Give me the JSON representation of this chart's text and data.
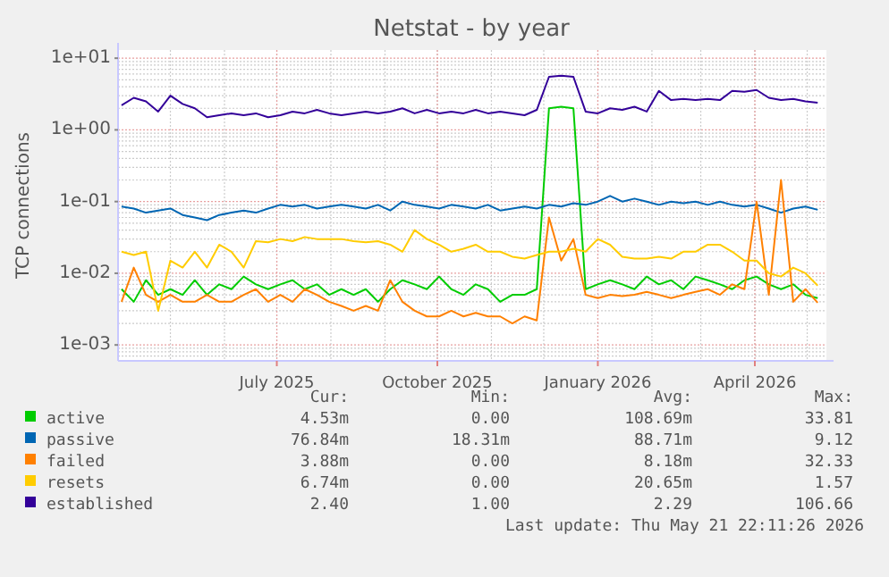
{
  "chart_data": {
    "type": "line",
    "title": "Netstat - by year",
    "ylabel": "TCP connections",
    "log": true,
    "grid": true,
    "legend": "bottom",
    "line_style": "solid",
    "marker": "none",
    "xlim": [
      "2025-04-01",
      "2026-05-12"
    ],
    "xticks": [
      {
        "value": "2025-07-01",
        "label": "July 2025"
      },
      {
        "value": "2025-10-01",
        "label": "October 2025"
      },
      {
        "value": "2026-01-01",
        "label": "January 2026"
      },
      {
        "value": "2026-04-01",
        "label": "April 2026"
      }
    ],
    "ylim": [
      0.0006,
      13
    ],
    "yticks": [
      {
        "value": 0.001,
        "label": "1e-03"
      },
      {
        "value": 0.01,
        "label": "1e-02"
      },
      {
        "value": 0.1,
        "label": "1e-01"
      },
      {
        "value": 1,
        "label": "1e+00"
      },
      {
        "value": 10,
        "label": "1e+01"
      }
    ],
    "x": [
      "2025-04-03",
      "2025-04-10",
      "2025-04-17",
      "2025-04-24",
      "2025-05-01",
      "2025-05-08",
      "2025-05-15",
      "2025-05-22",
      "2025-05-29",
      "2025-06-05",
      "2025-06-12",
      "2025-06-19",
      "2025-06-26",
      "2025-07-03",
      "2025-07-10",
      "2025-07-17",
      "2025-07-24",
      "2025-07-31",
      "2025-08-07",
      "2025-08-14",
      "2025-08-21",
      "2025-08-28",
      "2025-09-04",
      "2025-09-11",
      "2025-09-18",
      "2025-09-25",
      "2025-10-02",
      "2025-10-09",
      "2025-10-16",
      "2025-10-23",
      "2025-10-30",
      "2025-11-06",
      "2025-11-13",
      "2025-11-20",
      "2025-11-27",
      "2025-12-04",
      "2025-12-11",
      "2025-12-18",
      "2025-12-25",
      "2026-01-01",
      "2026-01-08",
      "2026-01-15",
      "2026-01-22",
      "2026-01-29",
      "2026-02-05",
      "2026-02-12",
      "2026-02-19",
      "2026-02-26",
      "2026-03-05",
      "2026-03-12",
      "2026-03-19",
      "2026-03-26",
      "2026-04-02",
      "2026-04-09",
      "2026-04-16",
      "2026-04-23",
      "2026-04-30",
      "2026-05-07"
    ],
    "series": [
      {
        "name": "active",
        "color": "#00cc00",
        "values": [
          0.006,
          0.004,
          0.008,
          0.005,
          0.006,
          0.005,
          0.008,
          0.005,
          0.007,
          0.006,
          0.009,
          0.007,
          0.006,
          0.007,
          0.008,
          0.006,
          0.007,
          0.005,
          0.006,
          0.005,
          0.006,
          0.004,
          0.006,
          0.008,
          0.007,
          0.006,
          0.009,
          0.006,
          0.005,
          0.007,
          0.006,
          0.004,
          0.005,
          0.005,
          0.006,
          2.0,
          2.1,
          2.0,
          0.006,
          0.007,
          0.008,
          0.007,
          0.006,
          0.009,
          0.007,
          0.008,
          0.006,
          0.009,
          0.008,
          0.007,
          0.006,
          0.008,
          0.009,
          0.007,
          0.006,
          0.007,
          0.005,
          0.0045
        ]
      },
      {
        "name": "passive",
        "color": "#0066b3",
        "values": [
          0.085,
          0.08,
          0.07,
          0.075,
          0.08,
          0.065,
          0.06,
          0.055,
          0.065,
          0.07,
          0.075,
          0.07,
          0.08,
          0.09,
          0.085,
          0.09,
          0.08,
          0.085,
          0.09,
          0.085,
          0.08,
          0.09,
          0.075,
          0.1,
          0.09,
          0.085,
          0.08,
          0.09,
          0.085,
          0.08,
          0.09,
          0.075,
          0.08,
          0.085,
          0.08,
          0.09,
          0.085,
          0.095,
          0.09,
          0.1,
          0.12,
          0.1,
          0.11,
          0.1,
          0.09,
          0.1,
          0.095,
          0.1,
          0.09,
          0.1,
          0.09,
          0.085,
          0.09,
          0.08,
          0.07,
          0.08,
          0.085,
          0.0768
        ]
      },
      {
        "name": "failed",
        "color": "#ff8000",
        "values": [
          0.004,
          0.012,
          0.005,
          0.004,
          0.005,
          0.004,
          0.004,
          0.005,
          0.004,
          0.004,
          0.005,
          0.006,
          0.004,
          0.005,
          0.004,
          0.006,
          0.005,
          0.004,
          0.0035,
          0.003,
          0.0035,
          0.003,
          0.008,
          0.004,
          0.003,
          0.0025,
          0.0025,
          0.003,
          0.0025,
          0.0028,
          0.0025,
          0.0025,
          0.002,
          0.0025,
          0.0022,
          0.06,
          0.015,
          0.03,
          0.005,
          0.0045,
          0.005,
          0.0048,
          0.005,
          0.0055,
          0.005,
          0.0045,
          0.005,
          0.0055,
          0.006,
          0.005,
          0.007,
          0.006,
          0.1,
          0.005,
          0.2,
          0.004,
          0.006,
          0.00388
        ]
      },
      {
        "name": "resets",
        "color": "#ffcc00",
        "values": [
          0.02,
          0.018,
          0.02,
          0.003,
          0.015,
          0.012,
          0.02,
          0.012,
          0.025,
          0.02,
          0.012,
          0.028,
          0.027,
          0.03,
          0.028,
          0.032,
          0.03,
          0.03,
          0.03,
          0.028,
          0.027,
          0.028,
          0.025,
          0.02,
          0.04,
          0.03,
          0.025,
          0.02,
          0.022,
          0.025,
          0.02,
          0.02,
          0.017,
          0.016,
          0.018,
          0.02,
          0.02,
          0.022,
          0.02,
          0.03,
          0.025,
          0.017,
          0.016,
          0.016,
          0.017,
          0.016,
          0.02,
          0.02,
          0.025,
          0.025,
          0.02,
          0.015,
          0.015,
          0.01,
          0.009,
          0.012,
          0.01,
          0.00674
        ]
      },
      {
        "name": "established",
        "color": "#330099",
        "values": [
          2.2,
          2.8,
          2.5,
          1.8,
          3.0,
          2.3,
          2.0,
          1.5,
          1.6,
          1.7,
          1.6,
          1.7,
          1.5,
          1.6,
          1.8,
          1.7,
          1.9,
          1.7,
          1.6,
          1.7,
          1.8,
          1.7,
          1.8,
          2.0,
          1.7,
          1.9,
          1.7,
          1.8,
          1.7,
          1.9,
          1.7,
          1.8,
          1.7,
          1.6,
          1.9,
          5.5,
          5.7,
          5.5,
          1.8,
          1.7,
          2.0,
          1.9,
          2.1,
          1.8,
          3.5,
          2.6,
          2.7,
          2.6,
          2.7,
          2.6,
          3.5,
          3.4,
          3.6,
          2.8,
          2.6,
          2.7,
          2.5,
          2.4
        ]
      }
    ],
    "annotations": [
      "Cur:",
      "Min:",
      "Avg:",
      "Max:",
      "4.53m",
      "0.00",
      "108.69m",
      "33.81",
      "76.84m",
      "18.31m",
      "88.71m",
      "9.12",
      "3.88m",
      "0.00",
      "8.18m",
      "32.33",
      "6.74m",
      "0.00",
      "20.65m",
      "1.57",
      "2.40",
      "1.00",
      "2.29",
      "106.66",
      "Last update: Thu May 21 22:11:26 2026"
    ]
  }
}
